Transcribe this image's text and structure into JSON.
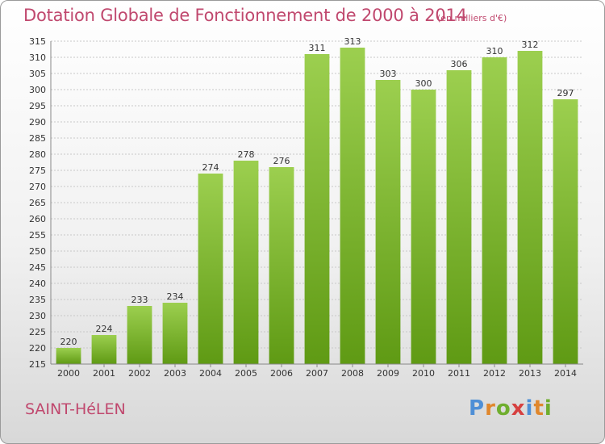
{
  "header": {
    "title": "Dotation Globale de Fonctionnement de 2000 à 2014",
    "subtitle": "(en milliers d'€)"
  },
  "footer": {
    "commune": "SAINT-HéLEN",
    "logo_text": "Proxiti",
    "logo_letters": [
      {
        "ch": "P",
        "color": "#4f8fd6"
      },
      {
        "ch": "r",
        "color": "#e0872c"
      },
      {
        "ch": "o",
        "color": "#6fae2e"
      },
      {
        "ch": "x",
        "color": "#d64040"
      },
      {
        "ch": "i",
        "color": "#4f8fd6"
      },
      {
        "ch": "t",
        "color": "#e0872c"
      },
      {
        "ch": "i",
        "color": "#6fae2e"
      }
    ]
  },
  "chart_data": {
    "type": "bar",
    "categories": [
      "2000",
      "2001",
      "2002",
      "2003",
      "2004",
      "2005",
      "2006",
      "2007",
      "2008",
      "2009",
      "2010",
      "2011",
      "2012",
      "2013",
      "2014"
    ],
    "values": [
      220,
      224,
      233,
      234,
      274,
      278,
      276,
      311,
      313,
      303,
      300,
      306,
      310,
      312,
      297
    ],
    "title": "Dotation Globale de Fonctionnement de 2000 à 2014",
    "ylim": [
      215,
      315
    ],
    "ytick_step": 5,
    "grid": true,
    "bar_color_top": "#9ccf4f",
    "bar_color_bottom": "#5f9a14"
  }
}
